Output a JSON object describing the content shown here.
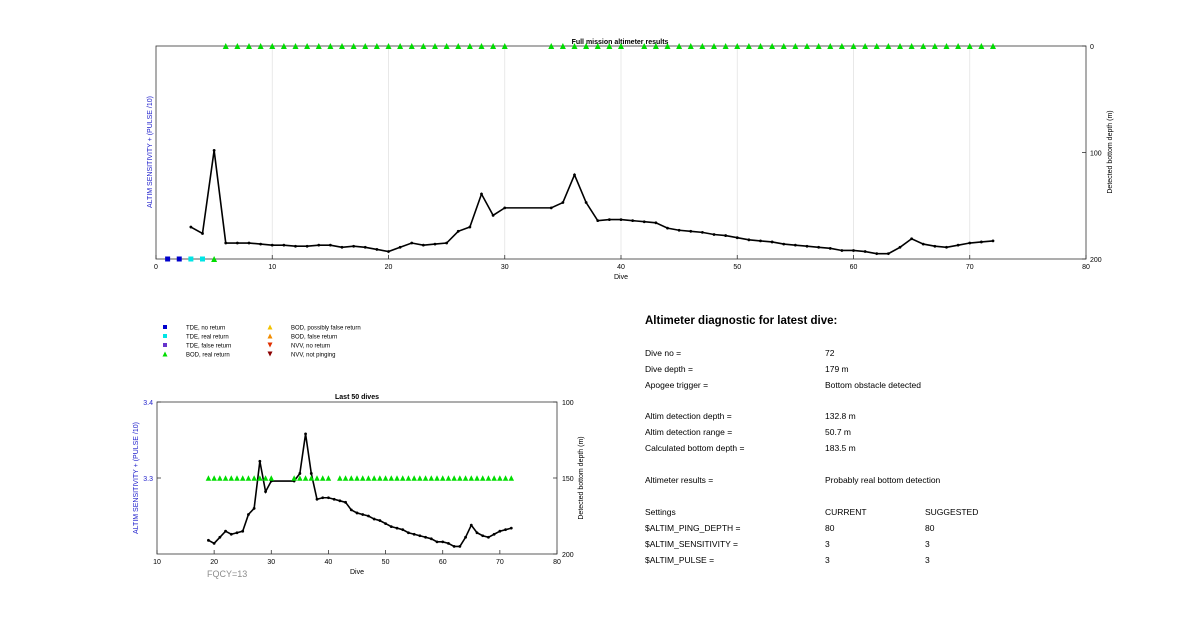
{
  "colors": {
    "series": "#000000",
    "green_marker": "#00dd00",
    "tde_no_return": "#0000cc",
    "tde_real_return": "#00e5e5",
    "tde_false_return": "#6633cc",
    "bod_possibly_false": "#f2c200",
    "bod_false": "#f28c00",
    "nvv_no_return": "#e03000",
    "nvv_not_pinging": "#8b0000",
    "left_axis_label": "#2222cc",
    "fqcy_text": "#8c8c8c"
  },
  "chart_data": [
    {
      "type": "line",
      "title": "Full mission altimeter results",
      "xlabel": "Dive",
      "ylabel_left": "ALTIM SENSITIVITY + (PULSE /10)",
      "ylabel_right": "Detected bottom depth (m)",
      "xlim": [
        0,
        80
      ],
      "xticks": [
        0,
        10,
        20,
        30,
        40,
        50,
        60,
        70,
        80
      ],
      "ylim_right": [
        0,
        200
      ],
      "yticks_right": [
        0,
        100,
        200
      ],
      "y_right_reversed": true,
      "grid": "vertical",
      "series": [
        {
          "name": "Detected bottom depth",
          "x": [
            3,
            4,
            5,
            6,
            7,
            8,
            9,
            10,
            11,
            12,
            13,
            14,
            15,
            16,
            17,
            18,
            19,
            20,
            21,
            22,
            23,
            24,
            25,
            26,
            27,
            28,
            29,
            30,
            34,
            35,
            36,
            37,
            38,
            39,
            40,
            41,
            42,
            43,
            44,
            45,
            46,
            47,
            48,
            49,
            50,
            51,
            52,
            53,
            54,
            55,
            56,
            57,
            58,
            59,
            60,
            61,
            62,
            63,
            64,
            65,
            66,
            67,
            68,
            69,
            70,
            71,
            72
          ],
          "y": [
            170,
            176,
            98,
            185,
            185,
            185,
            186,
            187,
            187,
            188,
            188,
            187,
            187,
            189,
            188,
            189,
            191,
            193,
            189,
            185,
            187,
            186,
            185,
            174,
            170,
            139,
            159,
            152,
            152,
            147,
            121,
            147,
            164,
            163,
            163,
            164,
            165,
            166,
            171,
            173,
            174,
            175,
            177,
            178,
            180,
            182,
            183,
            184,
            186,
            187,
            188,
            189,
            190,
            192,
            192,
            193,
            195,
            195,
            189,
            181,
            186,
            188,
            189,
            187,
            185,
            184,
            183
          ]
        }
      ],
      "markers": [
        {
          "type": "TDE, no return",
          "x": [
            1,
            2
          ],
          "y_depth": 200
        },
        {
          "type": "TDE, real return",
          "x": [
            3,
            4
          ],
          "y_depth": 200
        },
        {
          "type": "BOD, real return",
          "x": [
            5
          ],
          "y_depth": 200
        },
        {
          "type": "BOD, real return",
          "x": [
            6,
            7,
            8,
            9,
            10,
            11,
            12,
            13,
            14,
            15,
            16,
            17,
            18,
            19,
            20,
            21,
            22,
            23,
            24,
            25,
            26,
            27,
            28,
            29,
            30,
            34,
            35,
            36,
            37,
            38,
            39,
            40,
            42,
            43,
            44,
            45,
            46,
            47,
            48,
            49,
            50,
            51,
            52,
            53,
            54,
            55,
            56,
            57,
            58,
            59,
            60,
            61,
            62,
            63,
            64,
            65,
            66,
            67,
            68,
            69,
            70,
            71,
            72
          ],
          "y_depth": 0
        }
      ]
    },
    {
      "type": "line",
      "title": "Last 50 dives",
      "xlabel": "Dive",
      "ylabel_left": "ALTIM SENSITIVITY + (PULSE /10)",
      "ylabel_right": "Detected bottom depth (m)",
      "xlim": [
        10,
        80
      ],
      "xticks": [
        10,
        20,
        30,
        40,
        50,
        60,
        70,
        80
      ],
      "ylim_left": [
        3.2,
        3.4
      ],
      "yticks_left": [
        "3.4",
        "3.3"
      ],
      "ylim_right": [
        100,
        200
      ],
      "yticks_right": [
        100,
        150,
        200
      ],
      "y_right_reversed": true,
      "grid": "none",
      "series": [
        {
          "name": "Detected bottom depth",
          "x": [
            19,
            20,
            21,
            22,
            23,
            24,
            25,
            26,
            27,
            28,
            29,
            30,
            34,
            35,
            36,
            37,
            38,
            39,
            40,
            41,
            42,
            43,
            44,
            45,
            46,
            47,
            48,
            49,
            50,
            51,
            52,
            53,
            54,
            55,
            56,
            57,
            58,
            59,
            60,
            61,
            62,
            63,
            64,
            65,
            66,
            67,
            68,
            69,
            70,
            71,
            72
          ],
          "y": [
            191,
            193,
            189,
            185,
            187,
            186,
            185,
            174,
            170,
            139,
            159,
            152,
            152,
            147,
            121,
            147,
            164,
            163,
            163,
            164,
            165,
            166,
            171,
            173,
            174,
            175,
            177,
            178,
            180,
            182,
            183,
            184,
            186,
            187,
            188,
            189,
            190,
            192,
            192,
            193,
            195,
            195,
            189,
            181,
            186,
            188,
            189,
            187,
            185,
            184,
            183
          ]
        }
      ],
      "markers": [
        {
          "type": "BOD, real return",
          "x": [
            19,
            20,
            21,
            22,
            23,
            24,
            25,
            26,
            27,
            28,
            29,
            30,
            34,
            35,
            36,
            37,
            38,
            39,
            40,
            42,
            43,
            44,
            45,
            46,
            47,
            48,
            49,
            50,
            51,
            52,
            53,
            54,
            55,
            56,
            57,
            58,
            59,
            60,
            61,
            62,
            63,
            64,
            65,
            66,
            67,
            68,
            69,
            70,
            71,
            72
          ],
          "y_left": 3.3
        }
      ]
    }
  ],
  "legend": [
    {
      "label": "TDE, no return",
      "marker": "square",
      "color_key": "tde_no_return"
    },
    {
      "label": "TDE, real return",
      "marker": "square",
      "color_key": "tde_real_return"
    },
    {
      "label": "TDE, false return",
      "marker": "square",
      "color_key": "tde_false_return"
    },
    {
      "label": "BOD, real return",
      "marker": "triangle-up",
      "color_key": "green_marker"
    },
    {
      "label": "BOD, possibly false return",
      "marker": "triangle-up",
      "color_key": "bod_possibly_false"
    },
    {
      "label": "BOD, false return",
      "marker": "triangle-up",
      "color_key": "bod_false"
    },
    {
      "label": "NVV, no return",
      "marker": "triangle-down",
      "color_key": "nvv_no_return"
    },
    {
      "label": "NVV, not pinging",
      "marker": "triangle-down",
      "color_key": "nvv_not_pinging"
    }
  ],
  "fqcy": "FQCY=13",
  "diagnostic": {
    "title": "Altimeter diagnostic for latest dive:",
    "dive_no_label": "Dive no =",
    "dive_no": "72",
    "dive_depth_label": "Dive depth =",
    "dive_depth": "179 m",
    "apogee_label": "Apogee trigger =",
    "apogee": "Bottom obstacle detected",
    "det_depth_label": "Altim detection depth =",
    "det_depth": "132.8 m",
    "det_range_label": "Altim detection range =",
    "det_range": "50.7 m",
    "calc_depth_label": "Calculated bottom depth =",
    "calc_depth": "183.5 m",
    "results_label": "Altimeter results =",
    "results": "Probably real bottom detection",
    "settings_label": "Settings",
    "current_label": "CURRENT",
    "suggested_label": "SUGGESTED",
    "ping_label": "$ALTIM_PING_DEPTH =",
    "ping_current": "80",
    "ping_suggested": "80",
    "sens_label": "$ALTIM_SENSITIVITY =",
    "sens_current": "3",
    "sens_suggested": "3",
    "pulse_label": "$ALTIM_PULSE =",
    "pulse_current": "3",
    "pulse_suggested": "3"
  }
}
